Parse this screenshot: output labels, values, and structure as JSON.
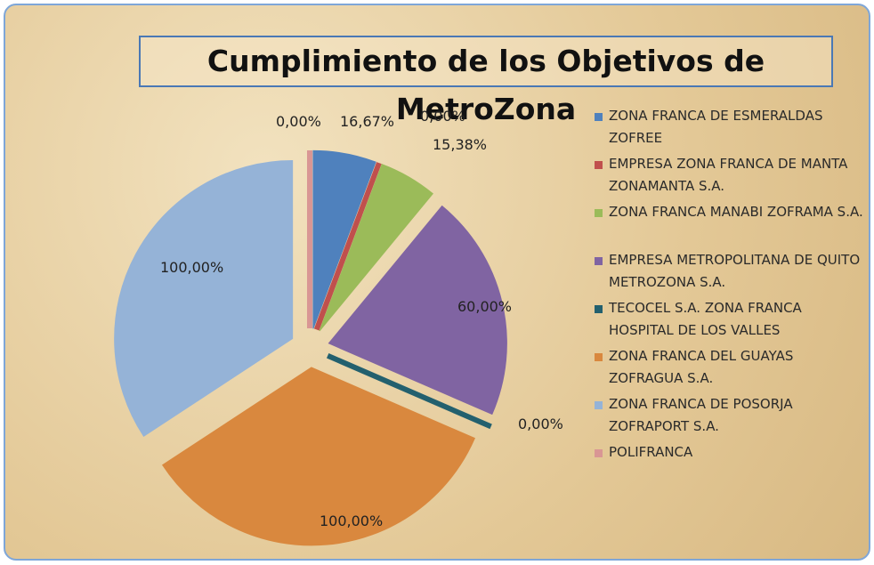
{
  "chart_data": {
    "type": "pie",
    "title": "Cumplimiento de los Objetivos de MetroZona",
    "categories": [
      "ZONA FRANCA DE ESMERALDAS ZOFREE",
      "EMPRESA ZONA FRANCA DE MANTA ZONAMANTA S.A.",
      "ZONA FRANCA MANABI ZOFRAMA S.A.",
      "EMPRESA METROPOLITANA DE QUITO METROZONA S.A.",
      "TECOCEL S.A. ZONA FRANCA HOSPITAL DE LOS VALLES",
      "ZONA FRANCA DEL GUAYAS ZOFRAGUA S.A.",
      "ZONA FRANCA DE POSORJA ZOFRAPORT S.A.",
      "POLIFRANCA"
    ],
    "values": [
      16.67,
      0,
      15.38,
      60,
      0,
      100,
      100,
      0
    ],
    "value_labels": [
      "16,67%",
      "0,00%",
      "15,38%",
      "60,00%",
      "0,00%",
      "100,00%",
      "100,00%",
      "0,00%"
    ],
    "colors": [
      "#4f81bd",
      "#c0504d",
      "#9bbb59",
      "#8064a2",
      "#23606e",
      "#d9883e",
      "#95b3d7",
      "#d99694"
    ],
    "legend": "right"
  }
}
